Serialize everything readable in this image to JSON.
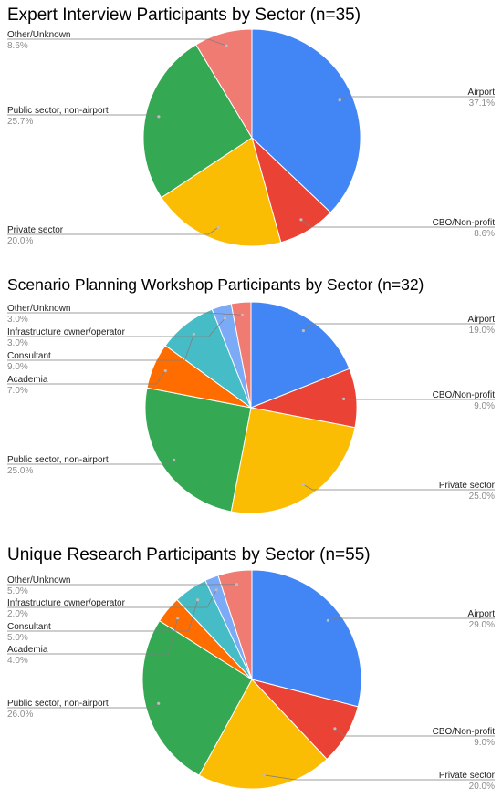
{
  "chart_data": [
    {
      "type": "pie",
      "title": "Expert Interview Participants by Sector (n=35)",
      "colors": {
        "Airport": "#4285f4",
        "CBO/Non-profit": "#ea4335",
        "Private sector": "#fbbc04",
        "Public sector, non-airport": "#34a853",
        "Academia": "#ff6d01",
        "Consultant": "#46bdc6",
        "Infrastructure owner/operator": "#7baaf7",
        "Other/Unknown": "#f07b72"
      },
      "slices": [
        {
          "label": "Airport",
          "value": 37.1,
          "value_label": "37.1%"
        },
        {
          "label": "CBO/Non-profit",
          "value": 8.6,
          "value_label": "8.6%"
        },
        {
          "label": "Private sector",
          "value": 20.0,
          "value_label": "20.0%"
        },
        {
          "label": "Public sector, non-airport",
          "value": 25.7,
          "value_label": "25.7%"
        },
        {
          "label": "Other/Unknown",
          "value": 8.6,
          "value_label": "8.6%"
        }
      ]
    },
    {
      "type": "pie",
      "title": "Scenario Planning Workshop Participants by Sector (n=32)",
      "colors": {
        "Airport": "#4285f4",
        "CBO/Non-profit": "#ea4335",
        "Private sector": "#fbbc04",
        "Public sector, non-airport": "#34a853",
        "Academia": "#ff6d01",
        "Consultant": "#46bdc6",
        "Infrastructure owner/operator": "#7baaf7",
        "Other/Unknown": "#f07b72"
      },
      "slices": [
        {
          "label": "Airport",
          "value": 19.0,
          "value_label": "19.0%"
        },
        {
          "label": "CBO/Non-profit",
          "value": 9.0,
          "value_label": "9.0%"
        },
        {
          "label": "Private sector",
          "value": 25.0,
          "value_label": "25.0%"
        },
        {
          "label": "Public sector, non-airport",
          "value": 25.0,
          "value_label": "25.0%"
        },
        {
          "label": "Academia",
          "value": 7.0,
          "value_label": "7.0%"
        },
        {
          "label": "Consultant",
          "value": 9.0,
          "value_label": "9.0%"
        },
        {
          "label": "Infrastructure owner/operator",
          "value": 3.0,
          "value_label": "3.0%"
        },
        {
          "label": "Other/Unknown",
          "value": 3.0,
          "value_label": "3.0%"
        }
      ]
    },
    {
      "type": "pie",
      "title": "Unique Research Participants by Sector (n=55)",
      "colors": {
        "Airport": "#4285f4",
        "CBO/Non-profit": "#ea4335",
        "Private sector": "#fbbc04",
        "Public sector, non-airport": "#34a853",
        "Academia": "#ff6d01",
        "Consultant": "#46bdc6",
        "Infrastructure owner/operator": "#7baaf7",
        "Other/Unknown": "#f07b72"
      },
      "slices": [
        {
          "label": "Airport",
          "value": 29.0,
          "value_label": "29.0%"
        },
        {
          "label": "CBO/Non-profit",
          "value": 9.0,
          "value_label": "9.0%"
        },
        {
          "label": "Private sector",
          "value": 20.0,
          "value_label": "20.0%"
        },
        {
          "label": "Public sector, non-airport",
          "value": 26.0,
          "value_label": "26.0%"
        },
        {
          "label": "Academia",
          "value": 4.0,
          "value_label": "4.0%"
        },
        {
          "label": "Consultant",
          "value": 5.0,
          "value_label": "5.0%"
        },
        {
          "label": "Infrastructure owner/operator",
          "value": 2.0,
          "value_label": "2.0%"
        },
        {
          "label": "Other/Unknown",
          "value": 5.0,
          "value_label": "5.0%"
        }
      ]
    }
  ]
}
